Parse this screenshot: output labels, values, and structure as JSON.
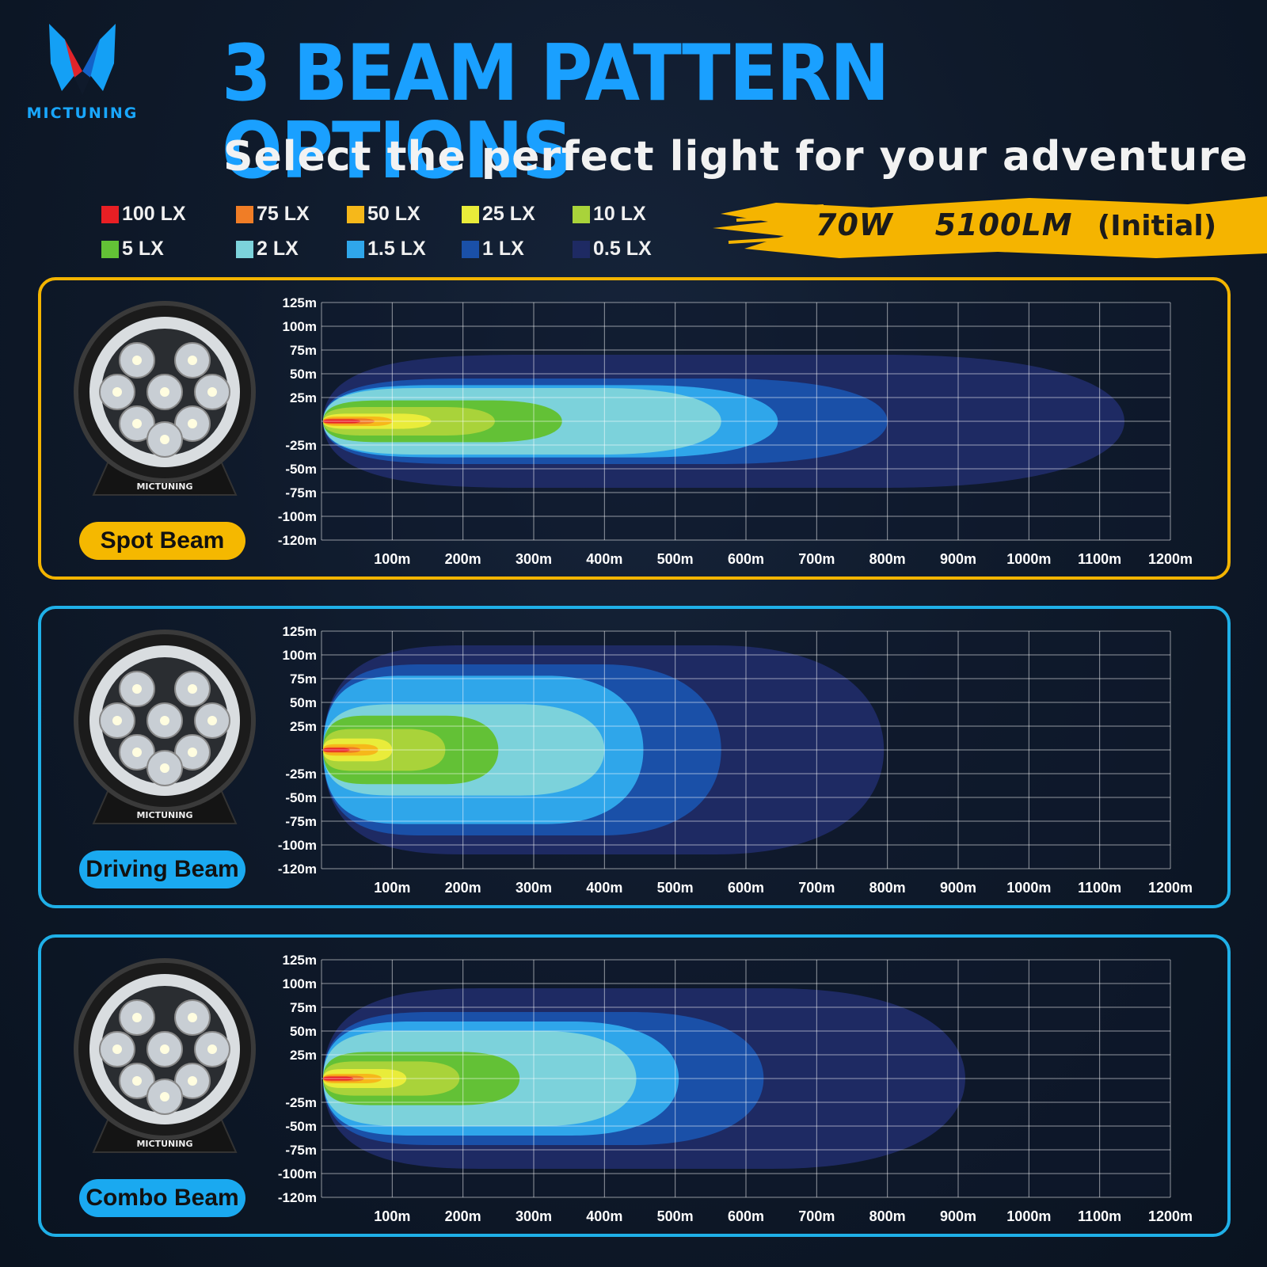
{
  "header": {
    "brand": "MICTUNING",
    "title": "3 BEAM PATTERN OPTIONS",
    "subtitle": "Select the perfect light for your adventure"
  },
  "legend": [
    {
      "label": "100 LX",
      "color": "#e81f24"
    },
    {
      "label": "75 LX",
      "color": "#f07d26"
    },
    {
      "label": "50 LX",
      "color": "#f6b81a"
    },
    {
      "label": "25 LX",
      "color": "#e9ec3a"
    },
    {
      "label": "10 LX",
      "color": "#a9d33a"
    },
    {
      "label": "5 LX",
      "color": "#63c136"
    },
    {
      "label": "2 LX",
      "color": "#7cd2db"
    },
    {
      "label": "1.5 LX",
      "color": "#2fa6ea"
    },
    {
      "label": "1 LX",
      "color": "#1a50a8"
    },
    {
      "label": "0.5 LX",
      "color": "#1e2a63"
    }
  ],
  "spec": {
    "power": "70W",
    "lumens": "5100LM",
    "note": "(Initial)"
  },
  "chart_data": [
    {
      "type": "area",
      "name": "Spot Beam",
      "x_ticks": [
        "100m",
        "200m",
        "300m",
        "400m",
        "500m",
        "600m",
        "700m",
        "800m",
        "900m",
        "1000m",
        "1100m",
        "1200m"
      ],
      "y_ticks": [
        "125m",
        "100m",
        "75m",
        "50m",
        "25m",
        "",
        "-25m",
        "-50m",
        "-75m",
        "-100m",
        "-120m"
      ],
      "xlim": [
        0,
        1200
      ],
      "ylim": [
        -125,
        125
      ],
      "series": [
        {
          "lux": "0.5 LX",
          "reach_m": 1135,
          "half_width_m": 70
        },
        {
          "lux": "1 LX",
          "reach_m": 800,
          "half_width_m": 45
        },
        {
          "lux": "1.5 LX",
          "reach_m": 645,
          "half_width_m": 38
        },
        {
          "lux": "2 LX",
          "reach_m": 565,
          "half_width_m": 35
        },
        {
          "lux": "5 LX",
          "reach_m": 340,
          "half_width_m": 22
        },
        {
          "lux": "10 LX",
          "reach_m": 245,
          "half_width_m": 15
        },
        {
          "lux": "25 LX",
          "reach_m": 155,
          "half_width_m": 8
        },
        {
          "lux": "50 LX",
          "reach_m": 100,
          "half_width_m": 5
        },
        {
          "lux": "75 LX",
          "reach_m": 75,
          "half_width_m": 3
        },
        {
          "lux": "100 LX",
          "reach_m": 55,
          "half_width_m": 2
        }
      ]
    },
    {
      "type": "area",
      "name": "Driving Beam",
      "x_ticks": [
        "100m",
        "200m",
        "300m",
        "400m",
        "500m",
        "600m",
        "700m",
        "800m",
        "900m",
        "1000m",
        "1100m",
        "1200m"
      ],
      "y_ticks": [
        "125m",
        "100m",
        "75m",
        "50m",
        "25m",
        "",
        "-25m",
        "-50m",
        "-75m",
        "-100m",
        "-120m"
      ],
      "xlim": [
        0,
        1200
      ],
      "ylim": [
        -125,
        125
      ],
      "series": [
        {
          "lux": "0.5 LX",
          "reach_m": 795,
          "half_width_m": 110
        },
        {
          "lux": "1 LX",
          "reach_m": 565,
          "half_width_m": 90
        },
        {
          "lux": "1.5 LX",
          "reach_m": 455,
          "half_width_m": 78
        },
        {
          "lux": "2 LX",
          "reach_m": 400,
          "half_width_m": 48
        },
        {
          "lux": "5 LX",
          "reach_m": 250,
          "half_width_m": 36
        },
        {
          "lux": "10 LX",
          "reach_m": 175,
          "half_width_m": 22
        },
        {
          "lux": "25 LX",
          "reach_m": 100,
          "half_width_m": 12
        },
        {
          "lux": "50 LX",
          "reach_m": 80,
          "half_width_m": 6
        },
        {
          "lux": "75 LX",
          "reach_m": 55,
          "half_width_m": 3
        },
        {
          "lux": "100 LX",
          "reach_m": 40,
          "half_width_m": 2
        }
      ]
    },
    {
      "type": "area",
      "name": "Combo Beam",
      "x_ticks": [
        "100m",
        "200m",
        "300m",
        "400m",
        "500m",
        "600m",
        "700m",
        "800m",
        "900m",
        "1000m",
        "1100m",
        "1200m"
      ],
      "y_ticks": [
        "125m",
        "100m",
        "75m",
        "50m",
        "25m",
        "",
        "-25m",
        "-50m",
        "-75m",
        "-100m",
        "-120m"
      ],
      "xlim": [
        0,
        1200
      ],
      "ylim": [
        -125,
        125
      ],
      "series": [
        {
          "lux": "0.5 LX",
          "reach_m": 910,
          "half_width_m": 95
        },
        {
          "lux": "1 LX",
          "reach_m": 625,
          "half_width_m": 70
        },
        {
          "lux": "1.5 LX",
          "reach_m": 505,
          "half_width_m": 60
        },
        {
          "lux": "2 LX",
          "reach_m": 445,
          "half_width_m": 50
        },
        {
          "lux": "5 LX",
          "reach_m": 280,
          "half_width_m": 28
        },
        {
          "lux": "10 LX",
          "reach_m": 195,
          "half_width_m": 18
        },
        {
          "lux": "25 LX",
          "reach_m": 120,
          "half_width_m": 10
        },
        {
          "lux": "50 LX",
          "reach_m": 85,
          "half_width_m": 5
        },
        {
          "lux": "75 LX",
          "reach_m": 60,
          "half_width_m": 3
        },
        {
          "lux": "100 LX",
          "reach_m": 45,
          "half_width_m": 2
        }
      ]
    }
  ],
  "panels": [
    {
      "label": "Spot Beam",
      "border": "#f3b400",
      "badge": "#f5b800",
      "lamp_brand": "MICTUNING"
    },
    {
      "label": "Driving Beam",
      "border": "#1fb0e8",
      "badge": "#1aa9f0",
      "lamp_brand": "MICTUNING"
    },
    {
      "label": "Combo Beam",
      "border": "#1fb0e8",
      "badge": "#1aa9f0",
      "lamp_brand": "MICTUNING"
    }
  ]
}
